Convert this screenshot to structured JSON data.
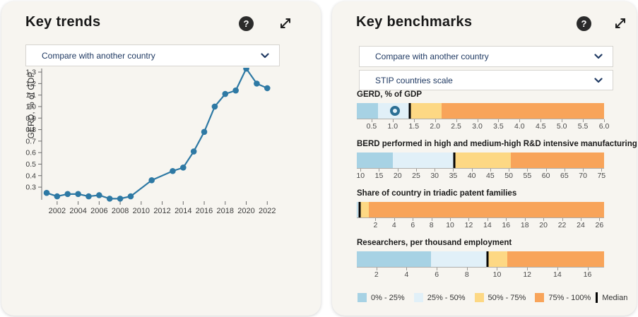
{
  "trends_panel": {
    "title": "Key trends",
    "help_glyph": "?",
    "compare_dropdown": {
      "value": "Compare with another country"
    }
  },
  "benchmarks_panel": {
    "title": "Key benchmarks",
    "help_glyph": "?",
    "compare_dropdown": {
      "value": "Compare with another country"
    },
    "scale_dropdown": {
      "value": "STIP countries scale"
    },
    "quartile_colors": [
      "#a7d2e4",
      "#e1f0f8",
      "#fdd884",
      "#f8a45a"
    ],
    "median_color": "#050505",
    "marker_color": "#2b6f94",
    "legend": [
      {
        "label": "0% - 25%",
        "color": "#a7d2e4",
        "type": "swatch"
      },
      {
        "label": "25% - 50%",
        "color": "#e1f0f8",
        "type": "swatch"
      },
      {
        "label": "50% - 75%",
        "color": "#fdd884",
        "type": "swatch"
      },
      {
        "label": "75% - 100%",
        "color": "#f8a45a",
        "type": "swatch"
      },
      {
        "label": "Median",
        "color": "#050505",
        "type": "median"
      }
    ]
  },
  "chart_data": [
    {
      "type": "line",
      "title": "Key trends",
      "ylabel": "GERD, % of GDP",
      "x": [
        2001,
        2002,
        2003,
        2004,
        2005,
        2006,
        2007,
        2008,
        2009,
        2011,
        2013,
        2014,
        2015,
        2016,
        2017,
        2018,
        2019,
        2020,
        2021,
        2022
      ],
      "y": [
        0.25,
        0.22,
        0.24,
        0.24,
        0.22,
        0.23,
        0.2,
        0.2,
        0.22,
        0.36,
        0.44,
        0.47,
        0.61,
        0.78,
        1.0,
        1.11,
        1.14,
        1.33,
        1.2,
        1.16
      ],
      "x_ticks": [
        2002,
        2004,
        2006,
        2008,
        2010,
        2012,
        2014,
        2016,
        2018,
        2020,
        2022
      ],
      "x_tick_labels": [
        "2002",
        "2004",
        "2006",
        "2008",
        "2010",
        "2012",
        "2014",
        "2016",
        "2018",
        "2020",
        "2022"
      ],
      "y_ticks": [
        0.3,
        0.4,
        0.5,
        0.6,
        0.7,
        0.8,
        0.9,
        1.0,
        1.1,
        1.2,
        1.3
      ],
      "y_tick_labels": [
        "0.3",
        "0.4",
        "0.5",
        "0.6",
        "0.7",
        "0.8",
        "0.9",
        "1.0",
        "1.1",
        "1.2",
        "1.3"
      ],
      "x_range": [
        2000.4,
        2023.0
      ],
      "y_range": [
        0.19,
        1.345
      ],
      "grid": false,
      "line_color": "#2e79a4"
    },
    {
      "type": "bar",
      "subtype": "horizontal-quartile-benchmark",
      "title": "Key benchmarks",
      "legend_position": "bottom",
      "bars": [
        {
          "label": "GERD, % of GDP",
          "range": [
            0.15,
            6.0
          ],
          "q1": 0.65,
          "median": 1.4,
          "q3": 2.15,
          "marker": 1.05,
          "ticks": [
            0.5,
            1.0,
            1.5,
            2.0,
            2.5,
            3.0,
            3.5,
            4.0,
            4.5,
            5.0,
            5.5,
            6.0
          ],
          "tick_labels": [
            "0.5",
            "1.0",
            "1.5",
            "2.0",
            "2.5",
            "3.0",
            "3.5",
            "4.0",
            "4.5",
            "5.0",
            "5.5",
            "6.0"
          ]
        },
        {
          "label": "BERD performed in high and medium-high R&D intensive manufacturing industrie",
          "range": [
            9.0,
            75.7
          ],
          "q1": 18.8,
          "median": 35.3,
          "q3": 50.5,
          "marker": null,
          "ticks": [
            10,
            15,
            20,
            25,
            30,
            35,
            40,
            45,
            50,
            55,
            60,
            65,
            70,
            75
          ],
          "tick_labels": [
            "10",
            "15",
            "20",
            "25",
            "30",
            "35",
            "40",
            "45",
            "50",
            "55",
            "60",
            "65",
            "70",
            "75"
          ]
        },
        {
          "label": "Share of country in triadic patent families",
          "range": [
            0,
            26.5
          ],
          "q1": 0.1,
          "median": 0.3,
          "q3": 1.3,
          "marker": null,
          "ticks": [
            2,
            4,
            6,
            8,
            10,
            12,
            14,
            16,
            18,
            20,
            22,
            24,
            26
          ],
          "tick_labels": [
            "2",
            "4",
            "6",
            "8",
            "10",
            "12",
            "14",
            "16",
            "18",
            "20",
            "22",
            "24",
            "26"
          ]
        },
        {
          "label": "Researchers, per thousand employment",
          "range": [
            0.7,
            17.1
          ],
          "q1": 5.6,
          "median": 9.35,
          "q3": 10.7,
          "marker": null,
          "ticks": [
            2,
            4,
            6,
            8,
            10,
            12,
            14,
            16
          ],
          "tick_labels": [
            "2",
            "4",
            "6",
            "8",
            "10",
            "12",
            "14",
            "16"
          ]
        }
      ]
    }
  ]
}
